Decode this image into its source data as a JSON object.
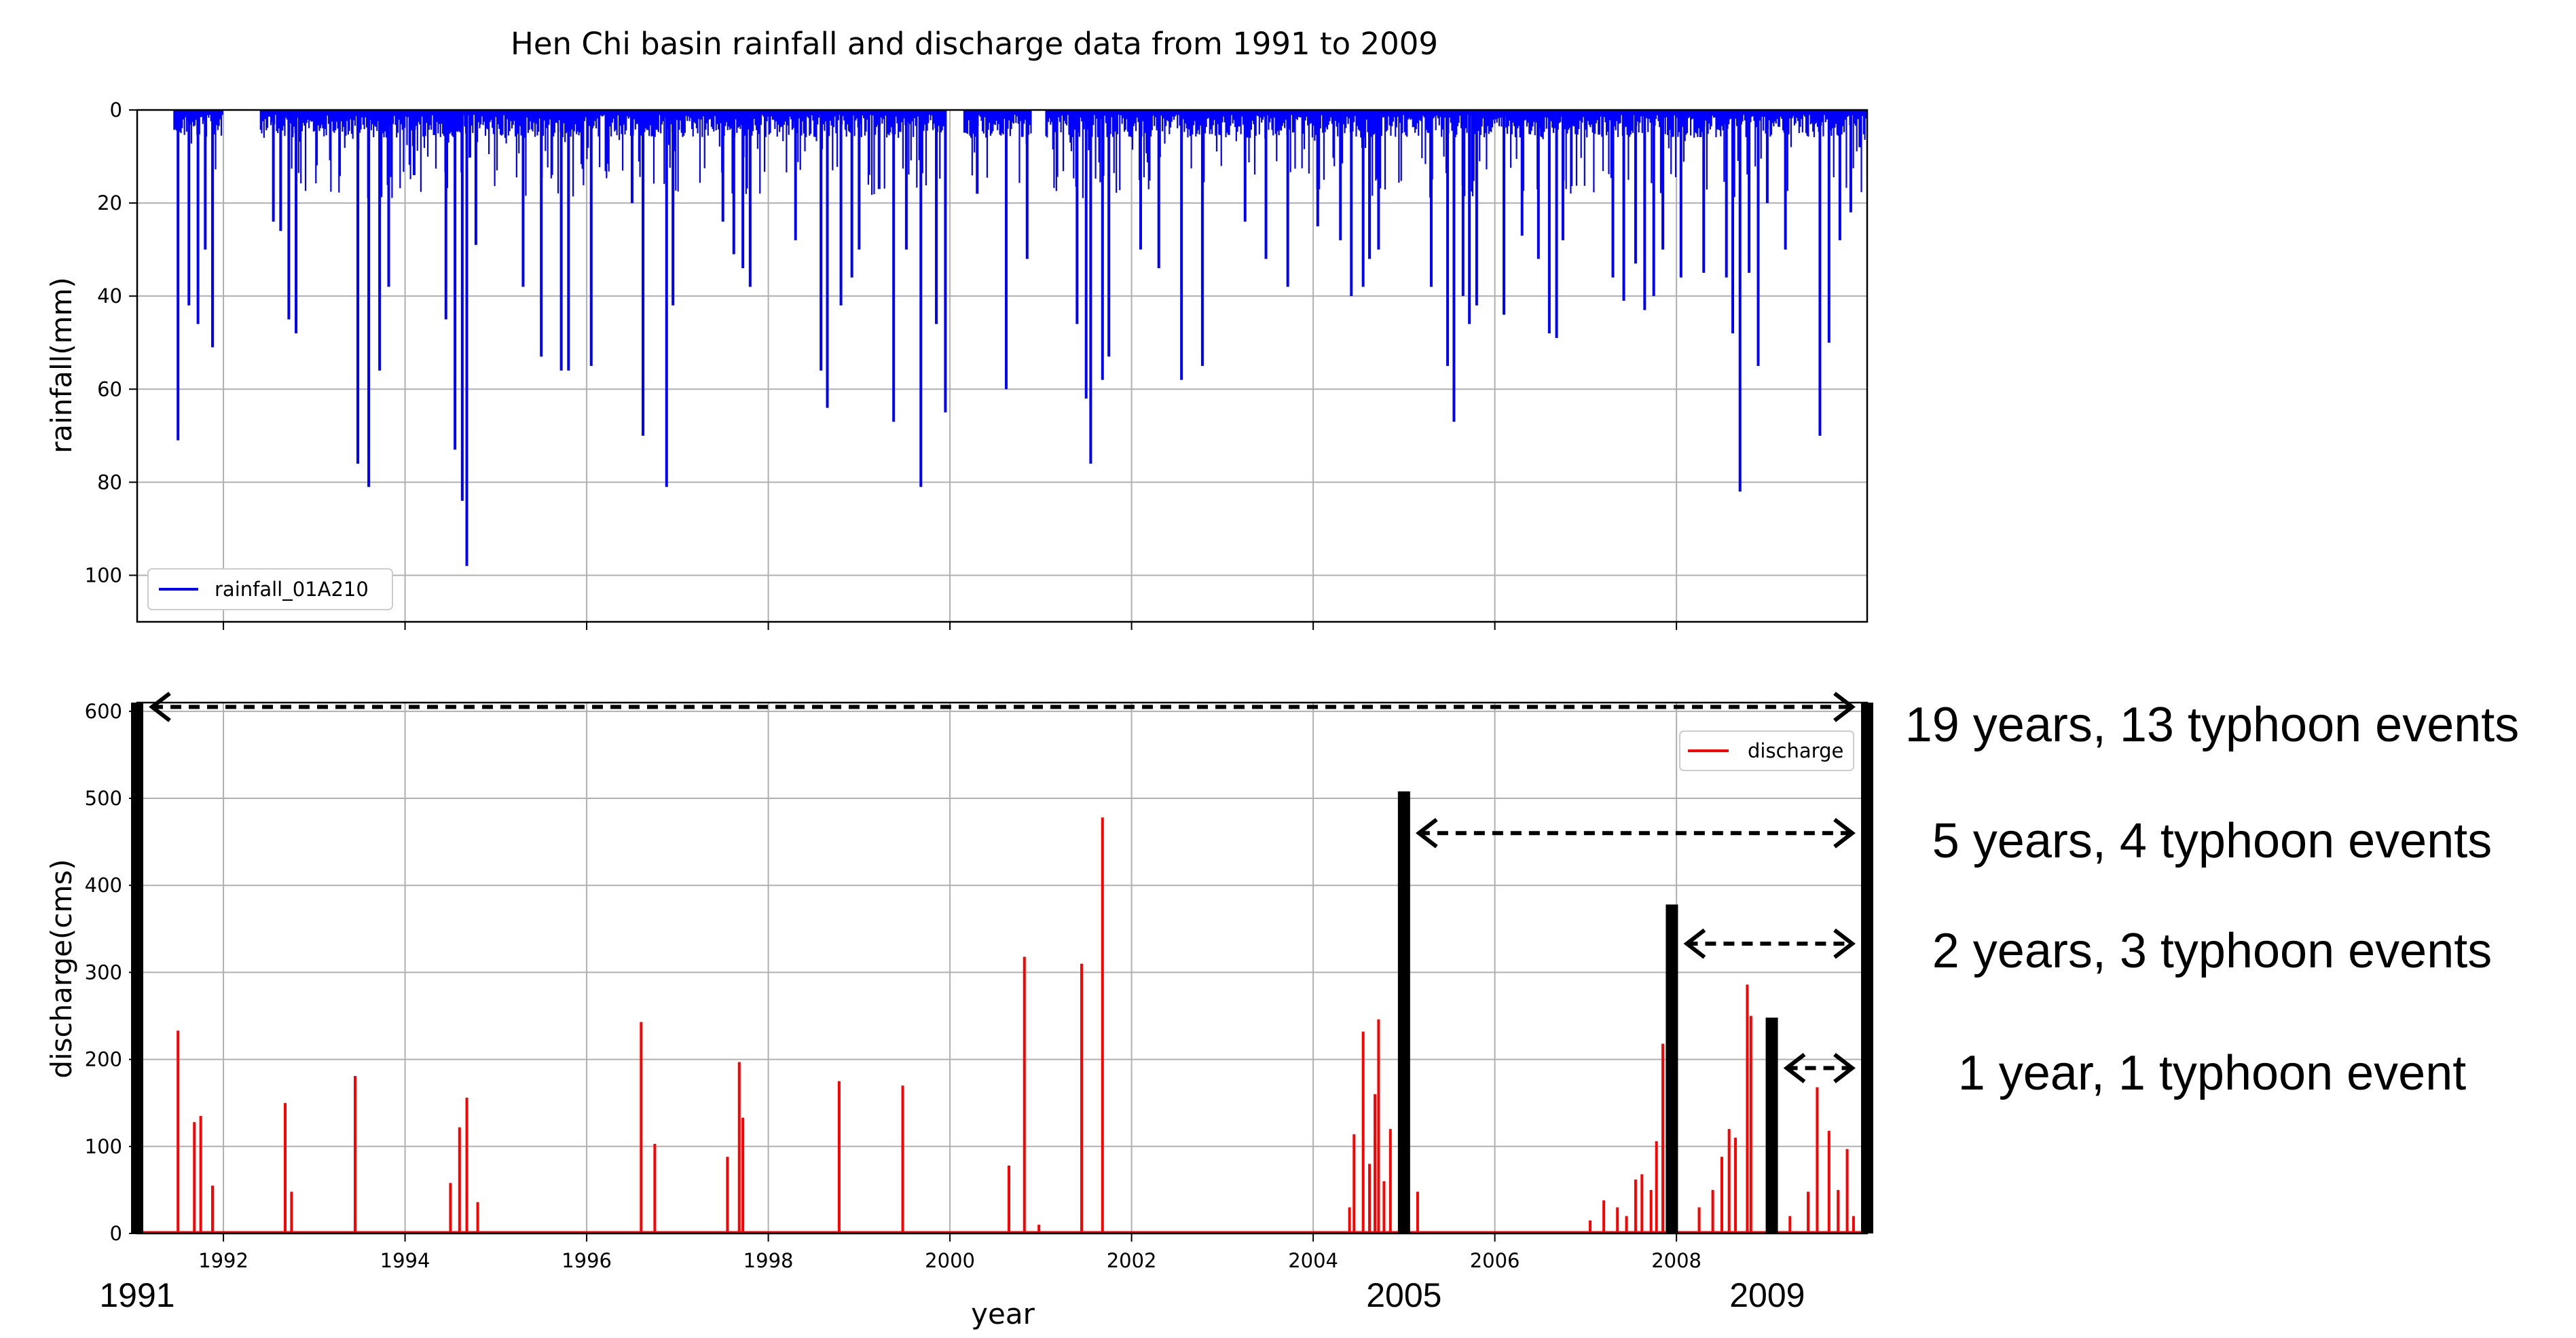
{
  "chart_data": [
    {
      "type": "bar",
      "title": "Hen Chi basin rainfall and discharge data from 1991 to 2009",
      "xlabel": "",
      "ylabel": "rainfall(mm)",
      "ylim": [
        110,
        0
      ],
      "y_inverted": true,
      "grid": true,
      "legend_placement": "bottom-left",
      "yticks": [
        "0",
        "20",
        "40",
        "60",
        "80",
        "100"
      ],
      "ytick_values": [
        0,
        20,
        40,
        60,
        80,
        100
      ],
      "xlim": [
        1991.05,
        2010.1
      ],
      "series": [
        {
          "name": "rainfall_01A210",
          "color": "#0000ff",
          "baseline_max": 5,
          "peaks": [
            {
              "x": 1991.5,
              "y": 71
            },
            {
              "x": 1991.62,
              "y": 42
            },
            {
              "x": 1991.72,
              "y": 46
            },
            {
              "x": 1991.8,
              "y": 30
            },
            {
              "x": 1991.88,
              "y": 51
            },
            {
              "x": 1992.55,
              "y": 24
            },
            {
              "x": 1992.63,
              "y": 26
            },
            {
              "x": 1992.72,
              "y": 45
            },
            {
              "x": 1992.8,
              "y": 48
            },
            {
              "x": 1993.48,
              "y": 76
            },
            {
              "x": 1993.6,
              "y": 81
            },
            {
              "x": 1993.72,
              "y": 56
            },
            {
              "x": 1993.82,
              "y": 38
            },
            {
              "x": 1994.1,
              "y": 14
            },
            {
              "x": 1994.45,
              "y": 45
            },
            {
              "x": 1994.55,
              "y": 73
            },
            {
              "x": 1994.63,
              "y": 84
            },
            {
              "x": 1994.68,
              "y": 98
            },
            {
              "x": 1994.78,
              "y": 29
            },
            {
              "x": 1995.3,
              "y": 38
            },
            {
              "x": 1995.5,
              "y": 53
            },
            {
              "x": 1995.72,
              "y": 56
            },
            {
              "x": 1995.8,
              "y": 56
            },
            {
              "x": 1996.05,
              "y": 55
            },
            {
              "x": 1996.5,
              "y": 20
            },
            {
              "x": 1996.62,
              "y": 70
            },
            {
              "x": 1996.88,
              "y": 81
            },
            {
              "x": 1996.95,
              "y": 42
            },
            {
              "x": 1997.5,
              "y": 24
            },
            {
              "x": 1997.62,
              "y": 31
            },
            {
              "x": 1997.72,
              "y": 34
            },
            {
              "x": 1997.8,
              "y": 38
            },
            {
              "x": 1998.3,
              "y": 28
            },
            {
              "x": 1998.58,
              "y": 56
            },
            {
              "x": 1998.65,
              "y": 64
            },
            {
              "x": 1998.8,
              "y": 42
            },
            {
              "x": 1998.92,
              "y": 36
            },
            {
              "x": 1999.0,
              "y": 30
            },
            {
              "x": 1999.22,
              "y": 17
            },
            {
              "x": 1999.38,
              "y": 67
            },
            {
              "x": 1999.52,
              "y": 30
            },
            {
              "x": 1999.68,
              "y": 81
            },
            {
              "x": 1999.85,
              "y": 46
            },
            {
              "x": 1999.95,
              "y": 65
            },
            {
              "x": 2000.3,
              "y": 18
            },
            {
              "x": 2000.62,
              "y": 60
            },
            {
              "x": 2000.85,
              "y": 32
            },
            {
              "x": 2001.4,
              "y": 46
            },
            {
              "x": 2001.5,
              "y": 62
            },
            {
              "x": 2001.55,
              "y": 76
            },
            {
              "x": 2001.68,
              "y": 58
            },
            {
              "x": 2001.75,
              "y": 53
            },
            {
              "x": 2002.1,
              "y": 30
            },
            {
              "x": 2002.3,
              "y": 34
            },
            {
              "x": 2002.55,
              "y": 58
            },
            {
              "x": 2002.78,
              "y": 55
            },
            {
              "x": 2003.25,
              "y": 24
            },
            {
              "x": 2003.48,
              "y": 32
            },
            {
              "x": 2003.72,
              "y": 38
            },
            {
              "x": 2004.05,
              "y": 25
            },
            {
              "x": 2004.3,
              "y": 28
            },
            {
              "x": 2004.42,
              "y": 40
            },
            {
              "x": 2004.55,
              "y": 38
            },
            {
              "x": 2004.62,
              "y": 32
            },
            {
              "x": 2004.72,
              "y": 30
            },
            {
              "x": 2005.3,
              "y": 38
            },
            {
              "x": 2005.48,
              "y": 55
            },
            {
              "x": 2005.55,
              "y": 67
            },
            {
              "x": 2005.65,
              "y": 40
            },
            {
              "x": 2005.72,
              "y": 46
            },
            {
              "x": 2005.8,
              "y": 42
            },
            {
              "x": 2006.1,
              "y": 44
            },
            {
              "x": 2006.3,
              "y": 27
            },
            {
              "x": 2006.48,
              "y": 32
            },
            {
              "x": 2006.6,
              "y": 48
            },
            {
              "x": 2006.68,
              "y": 49
            },
            {
              "x": 2006.75,
              "y": 28
            },
            {
              "x": 2007.3,
              "y": 36
            },
            {
              "x": 2007.42,
              "y": 41
            },
            {
              "x": 2007.55,
              "y": 33
            },
            {
              "x": 2007.65,
              "y": 43
            },
            {
              "x": 2007.75,
              "y": 40
            },
            {
              "x": 2007.85,
              "y": 30
            },
            {
              "x": 2008.05,
              "y": 36
            },
            {
              "x": 2008.3,
              "y": 35
            },
            {
              "x": 2008.55,
              "y": 36
            },
            {
              "x": 2008.62,
              "y": 48
            },
            {
              "x": 2008.7,
              "y": 82
            },
            {
              "x": 2008.8,
              "y": 35
            },
            {
              "x": 2008.9,
              "y": 55
            },
            {
              "x": 2009.0,
              "y": 20
            },
            {
              "x": 2009.2,
              "y": 30
            },
            {
              "x": 2009.58,
              "y": 70
            },
            {
              "x": 2009.68,
              "y": 50
            },
            {
              "x": 2009.8,
              "y": 28
            },
            {
              "x": 2009.92,
              "y": 22
            },
            {
              "x": 2010.02,
              "y": 8
            }
          ],
          "zero_gaps": [
            [
              1991.05,
              1991.45
            ],
            [
              1992.0,
              1992.4
            ],
            [
              1999.95,
              2000.15
            ],
            [
              2000.9,
              2001.05
            ]
          ]
        }
      ]
    },
    {
      "type": "line",
      "title": "",
      "xlabel": "year",
      "ylabel": "discharge(cms)",
      "ylim": [
        0,
        610
      ],
      "grid": true,
      "legend_placement": "top-right",
      "yticks": [
        "0",
        "100",
        "200",
        "300",
        "400",
        "500",
        "600"
      ],
      "ytick_values": [
        0,
        100,
        200,
        300,
        400,
        500,
        600
      ],
      "xticks": [
        "1992",
        "1994",
        "1996",
        "1998",
        "2000",
        "2002",
        "2004",
        "2006",
        "2008"
      ],
      "xtick_values": [
        1992,
        1994,
        1996,
        1998,
        2000,
        2002,
        2004,
        2006,
        2008
      ],
      "xlim": [
        1991.05,
        2010.1
      ],
      "series": [
        {
          "name": "discharge",
          "color": "#ff0000",
          "peaks": [
            {
              "x": 1991.5,
              "y": 233
            },
            {
              "x": 1991.68,
              "y": 128
            },
            {
              "x": 1991.75,
              "y": 135
            },
            {
              "x": 1991.88,
              "y": 55
            },
            {
              "x": 1992.68,
              "y": 150
            },
            {
              "x": 1992.75,
              "y": 48
            },
            {
              "x": 1993.45,
              "y": 181
            },
            {
              "x": 1994.5,
              "y": 58
            },
            {
              "x": 1994.6,
              "y": 122
            },
            {
              "x": 1994.68,
              "y": 156
            },
            {
              "x": 1994.8,
              "y": 36
            },
            {
              "x": 1996.6,
              "y": 243
            },
            {
              "x": 1996.75,
              "y": 103
            },
            {
              "x": 1997.55,
              "y": 88
            },
            {
              "x": 1997.68,
              "y": 197
            },
            {
              "x": 1997.72,
              "y": 133
            },
            {
              "x": 1998.78,
              "y": 175
            },
            {
              "x": 1999.48,
              "y": 170
            },
            {
              "x": 2000.65,
              "y": 78
            },
            {
              "x": 2000.82,
              "y": 318
            },
            {
              "x": 2000.98,
              "y": 10
            },
            {
              "x": 2001.45,
              "y": 310
            },
            {
              "x": 2001.68,
              "y": 478
            },
            {
              "x": 2004.4,
              "y": 30
            },
            {
              "x": 2004.45,
              "y": 114
            },
            {
              "x": 2004.55,
              "y": 232
            },
            {
              "x": 2004.62,
              "y": 80
            },
            {
              "x": 2004.68,
              "y": 160
            },
            {
              "x": 2004.72,
              "y": 246
            },
            {
              "x": 2004.78,
              "y": 60
            },
            {
              "x": 2004.85,
              "y": 120
            },
            {
              "x": 2005.15,
              "y": 48
            },
            {
              "x": 2007.05,
              "y": 15
            },
            {
              "x": 2007.2,
              "y": 38
            },
            {
              "x": 2007.35,
              "y": 30
            },
            {
              "x": 2007.45,
              "y": 20
            },
            {
              "x": 2007.55,
              "y": 62
            },
            {
              "x": 2007.62,
              "y": 68
            },
            {
              "x": 2007.72,
              "y": 50
            },
            {
              "x": 2007.78,
              "y": 106
            },
            {
              "x": 2007.85,
              "y": 218
            },
            {
              "x": 2008.25,
              "y": 30
            },
            {
              "x": 2008.4,
              "y": 50
            },
            {
              "x": 2008.5,
              "y": 88
            },
            {
              "x": 2008.58,
              "y": 120
            },
            {
              "x": 2008.65,
              "y": 110
            },
            {
              "x": 2008.78,
              "y": 286
            },
            {
              "x": 2008.82,
              "y": 250
            },
            {
              "x": 2009.25,
              "y": 20
            },
            {
              "x": 2009.45,
              "y": 48
            },
            {
              "x": 2009.55,
              "y": 168
            },
            {
              "x": 2009.68,
              "y": 118
            },
            {
              "x": 2009.78,
              "y": 50
            },
            {
              "x": 2009.88,
              "y": 97
            },
            {
              "x": 2009.95,
              "y": 20
            }
          ]
        }
      ],
      "annotations": {
        "period_markers": [
          {
            "start_year": 1991.05,
            "bar_top": 610,
            "arrow_y": 605,
            "label": "19 years, 13 typhoon events"
          },
          {
            "start_year": 2005.0,
            "bar_top": 508,
            "arrow_y": 460,
            "label": "5 years, 4 typhoon events"
          },
          {
            "start_year": 2007.95,
            "bar_top": 378,
            "arrow_y": 333,
            "label": "2 years, 3 typhoon events"
          },
          {
            "start_year": 2009.05,
            "bar_top": 248,
            "arrow_y": 190,
            "label": "1 year, 1 typhoon event"
          }
        ],
        "end_year": 2010.1,
        "year_labels": [
          {
            "text": "1991",
            "year": 1991.05
          },
          {
            "text": "2005",
            "year": 2005.0
          },
          {
            "text": "2009",
            "year": 2009.0
          }
        ]
      }
    }
  ]
}
